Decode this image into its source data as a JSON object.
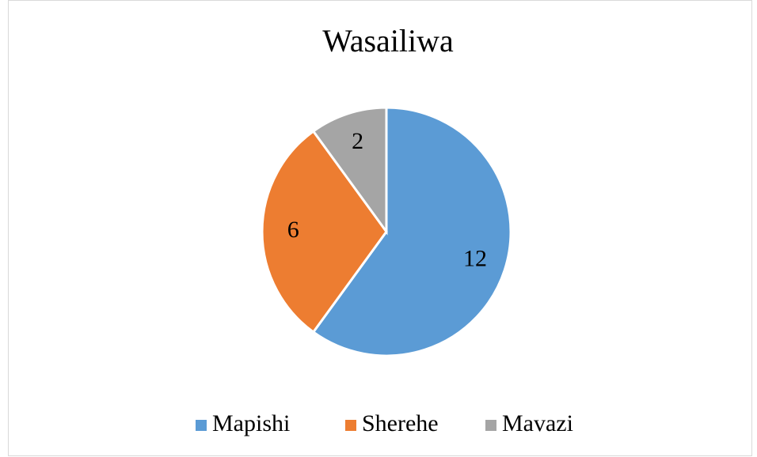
{
  "chart_data": {
    "type": "pie",
    "title": "Wasailiwa",
    "categories": [
      "Mapishi",
      "Sherehe",
      "Mavazi"
    ],
    "values": [
      12,
      6,
      2
    ],
    "colors": [
      "#5b9bd5",
      "#ed7d31",
      "#a5a5a5"
    ],
    "legend": "bottom"
  }
}
